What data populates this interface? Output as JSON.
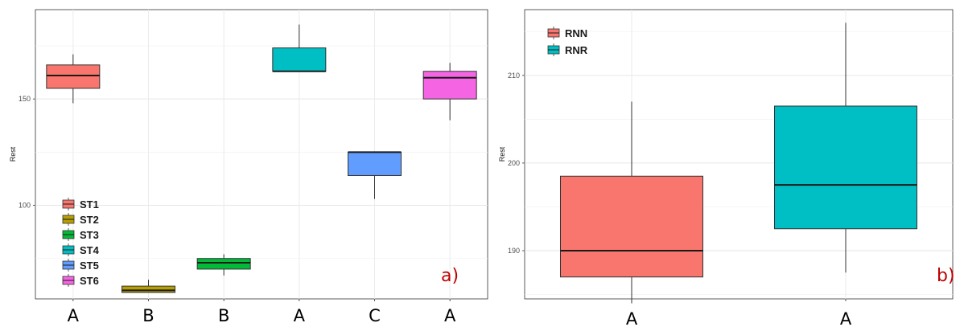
{
  "chart_data": [
    {
      "type": "box",
      "tag": "a)",
      "ylabel": "Rest",
      "ylim": [
        56,
        192
      ],
      "yticks": [
        100,
        150
      ],
      "grid": true,
      "legend_position": "bottom-left",
      "categories": [
        "A",
        "B",
        "B",
        "A",
        "C",
        "A"
      ],
      "series": [
        {
          "name": "ST1",
          "color": "#F8766D",
          "min": 148,
          "q1": 155,
          "median": 161,
          "q3": 166,
          "max": 171
        },
        {
          "name": "ST2",
          "color": "#B79F00",
          "min": 59,
          "q1": 59,
          "median": 60,
          "q3": 62,
          "max": 65
        },
        {
          "name": "ST3",
          "color": "#00BA38",
          "min": 67,
          "q1": 70,
          "median": 73,
          "q3": 75,
          "max": 77
        },
        {
          "name": "ST4",
          "color": "#00BFC4",
          "min": 163,
          "q1": 163,
          "median": 163,
          "q3": 174,
          "max": 185
        },
        {
          "name": "ST5",
          "color": "#619CFF",
          "min": 103,
          "q1": 114,
          "median": 125,
          "q3": 125,
          "max": 125
        },
        {
          "name": "ST6",
          "color": "#F564E3",
          "min": 140,
          "q1": 150,
          "median": 160,
          "q3": 163,
          "max": 167
        }
      ]
    },
    {
      "type": "box",
      "tag": "b)",
      "ylabel": "Rest",
      "ylim": [
        184.5,
        217.5
      ],
      "yticks": [
        190,
        200,
        210
      ],
      "grid": true,
      "legend_position": "top-left",
      "categories": [
        "A",
        "A"
      ],
      "series": [
        {
          "name": "RNN",
          "color": "#F8766D",
          "min": 184,
          "q1": 187,
          "median": 190,
          "q3": 198.5,
          "max": 207
        },
        {
          "name": "RNR",
          "color": "#00BFC4",
          "min": 187.5,
          "q1": 192.5,
          "median": 197.5,
          "q3": 206.5,
          "max": 216
        }
      ]
    }
  ]
}
